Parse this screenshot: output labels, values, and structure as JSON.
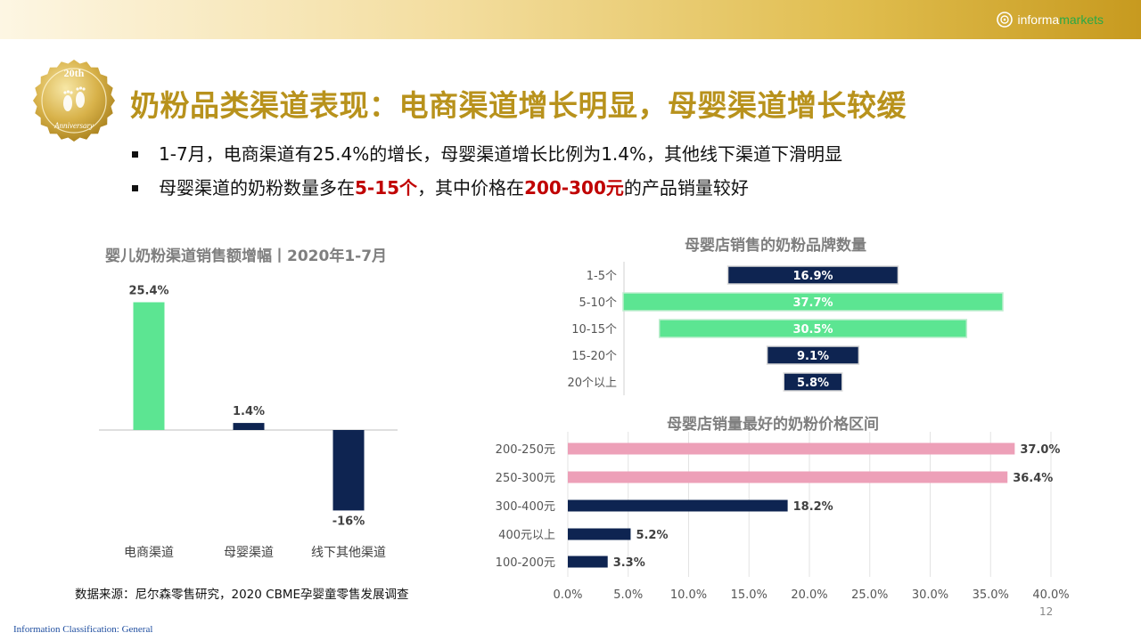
{
  "header": {
    "logo_primary": "informa",
    "logo_secondary": "markets"
  },
  "badge": {
    "text_top": "20th",
    "text_bottom": "Anniversary",
    "icon": "footprints-icon"
  },
  "title": "奶粉品类渠道表现：电商渠道增长明显，母婴渠道增长较缓",
  "bullets": [
    {
      "segments": [
        {
          "text": "1-7月，电商渠道有25.4%的增长，母婴渠道增长比例为1.4%，其他线下渠道下滑明显",
          "highlight": false
        }
      ]
    },
    {
      "segments": [
        {
          "text": "母婴渠道的奶粉数量多在",
          "highlight": false
        },
        {
          "text": "5-15个",
          "highlight": true
        },
        {
          "text": "，其中价格在",
          "highlight": false
        },
        {
          "text": "200-300元",
          "highlight": true
        },
        {
          "text": "的产品销量较好",
          "highlight": false
        }
      ]
    }
  ],
  "colors": {
    "title": "#b8921c",
    "highlight": "#c00000",
    "green": "#5ce592",
    "navy": "#0e2451",
    "pink": "#eda0b8"
  },
  "chart_data": [
    {
      "type": "bar",
      "title": "婴儿奶粉渠道销售额增幅丨2020年1-7月",
      "categories": [
        "电商渠道",
        "母婴渠道",
        "线下其他渠道"
      ],
      "values": [
        25.4,
        1.4,
        -16
      ],
      "value_labels": [
        "25.4%",
        "1.4%",
        "-16%"
      ],
      "bar_colors": [
        "#5ce592",
        "#0e2451",
        "#0e2451"
      ],
      "grid": false
    },
    {
      "type": "bar",
      "orientation": "horizontal-centered",
      "title": "母婴店销售的奶粉品牌数量",
      "categories": [
        "1-5个",
        "5-10个",
        "10-15个",
        "15-20个",
        "20个以上"
      ],
      "values": [
        16.9,
        37.7,
        30.5,
        9.1,
        5.8
      ],
      "value_labels": [
        "16.9%",
        "37.7%",
        "30.5%",
        "9.1%",
        "5.8%"
      ],
      "bar_colors": [
        "#0e2451",
        "#5ce592",
        "#5ce592",
        "#0e2451",
        "#0e2451"
      ],
      "grid": false
    },
    {
      "type": "bar",
      "orientation": "horizontal",
      "title": "母婴店销量最好的奶粉价格区间",
      "categories": [
        "200-250元",
        "250-300元",
        "300-400元",
        "400元以上",
        "100-200元"
      ],
      "values": [
        37.0,
        36.4,
        18.2,
        5.2,
        3.3
      ],
      "value_labels": [
        "37.0%",
        "36.4%",
        "18.2%",
        "5.2%",
        "3.3%"
      ],
      "bar_colors": [
        "#eda0b8",
        "#eda0b8",
        "#0e2451",
        "#0e2451",
        "#0e2451"
      ],
      "xlim": [
        0,
        40
      ],
      "xticks": [
        "0.0%",
        "5.0%",
        "10.0%",
        "15.0%",
        "20.0%",
        "25.0%",
        "30.0%",
        "35.0%",
        "40.0%"
      ],
      "grid": true
    }
  ],
  "footer": {
    "source": "数据来源：尼尔森零售研究，2020 CBME孕婴童零售发展调查",
    "classification": "Information Classification: General",
    "page_number": "12"
  }
}
